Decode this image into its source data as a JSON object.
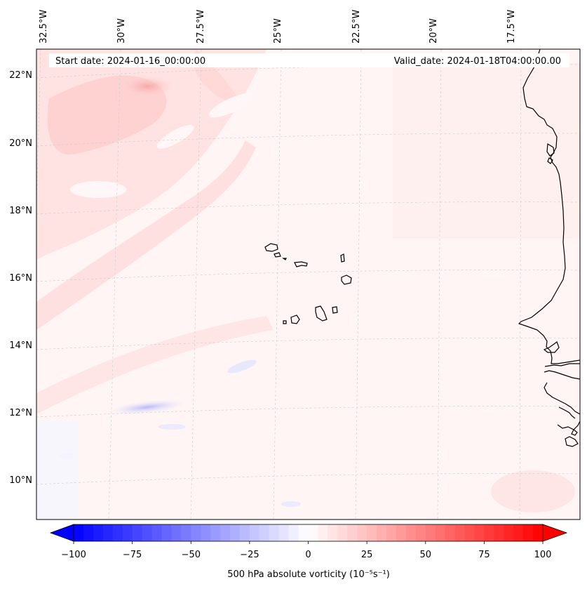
{
  "map": {
    "header": {
      "start_date": "Start date: 2024-01-16_00:00:00",
      "valid_date": "Valid_date: 2024-01-18T04:00:00.00"
    },
    "lon_labels": [
      "32.5°W",
      "30°W",
      "27.5°W",
      "25°W",
      "22.5°W",
      "20°W",
      "17.5°W"
    ],
    "lat_labels": [
      "22°N",
      "20°N",
      "18°N",
      "16°N",
      "14°N",
      "12°N",
      "10°N"
    ],
    "colorbar": {
      "ticks": [
        "−100",
        "−75",
        "−50",
        "−25",
        "0",
        "25",
        "50",
        "75",
        "100"
      ],
      "label": "500 hPa absolute vorticity (10⁻⁵s⁻¹)",
      "min": -100,
      "max": 100,
      "levels": 48
    },
    "colors": {
      "negative": "#0000ff",
      "neutral": "#ffffff",
      "positive": "#ff0000",
      "coast": "#000000",
      "grid": "#c8c8c8"
    }
  }
}
